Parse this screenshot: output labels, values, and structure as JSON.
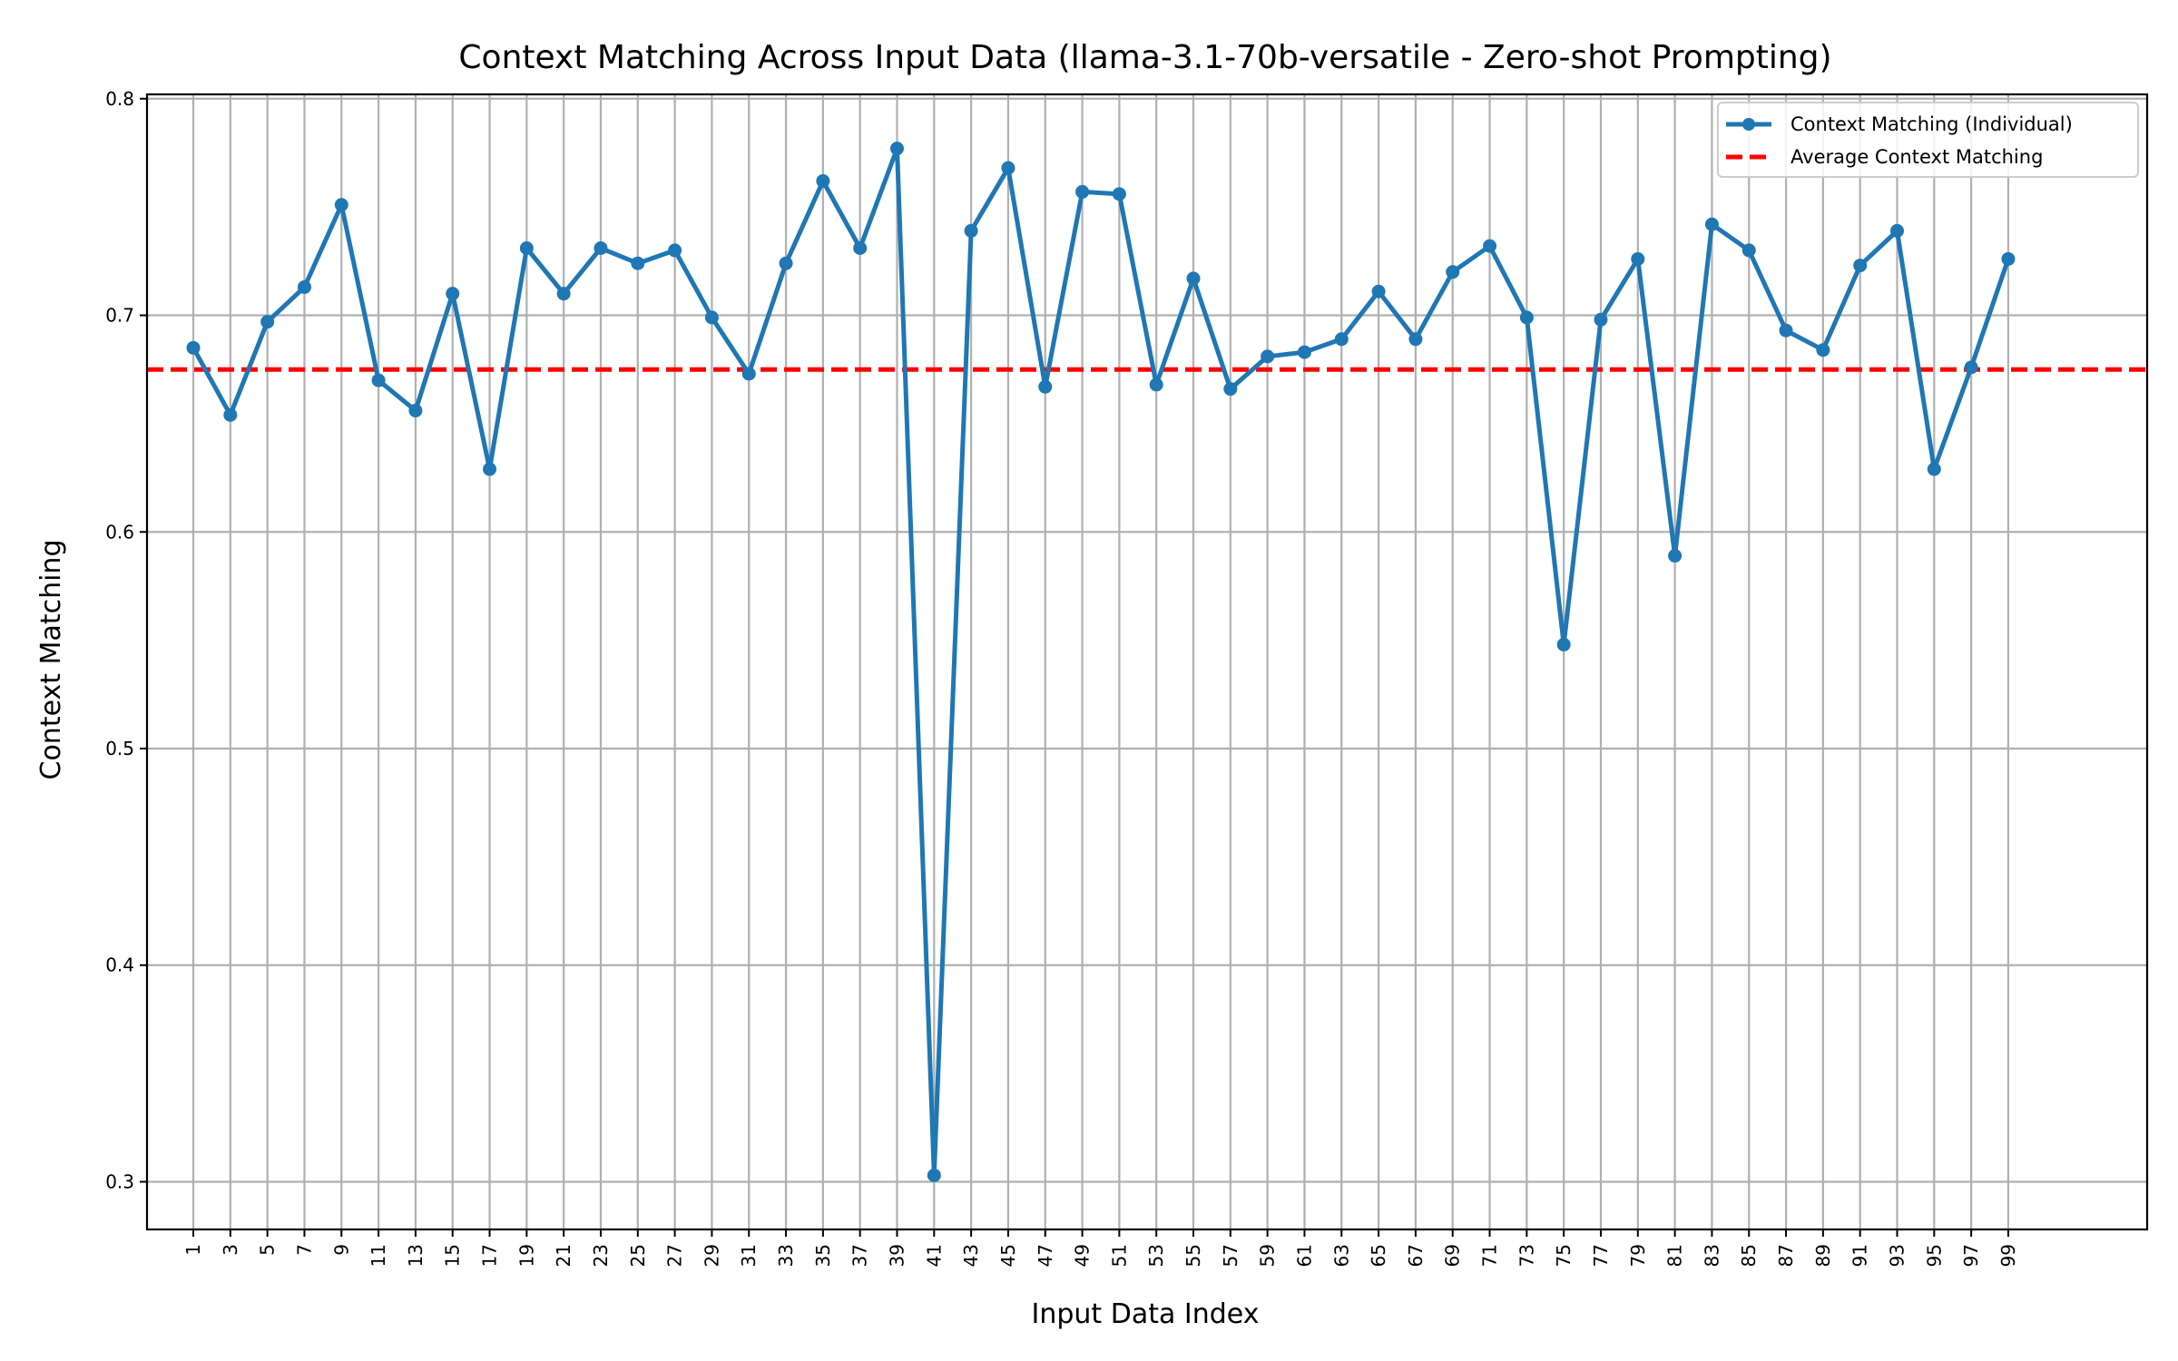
{
  "chart_data": {
    "type": "line",
    "title": "Context Matching Across Input Data (llama-3.1-70b-versatile - Zero-shot Prompting)",
    "xlabel": "Input Data Index",
    "ylabel": "Context Matching",
    "xlim": [
      -1.5,
      106.5
    ],
    "ylim": [
      0.278,
      0.802
    ],
    "grid": true,
    "legend_position": "upper right",
    "x_ticks": [
      1,
      3,
      5,
      7,
      9,
      11,
      13,
      15,
      17,
      19,
      21,
      23,
      25,
      27,
      29,
      31,
      33,
      35,
      37,
      39,
      41,
      43,
      45,
      47,
      49,
      51,
      53,
      55,
      57,
      59,
      61,
      63,
      65,
      67,
      69,
      71,
      73,
      75,
      77,
      79,
      81,
      83,
      85,
      87,
      89,
      91,
      93,
      95,
      97,
      99
    ],
    "x_tick_labels": [
      "1",
      "3",
      "5",
      "7",
      "9",
      "11",
      "13",
      "15",
      "17",
      "19",
      "21",
      "23",
      "25",
      "27",
      "29",
      "31",
      "33",
      "35",
      "37",
      "39",
      "41",
      "43",
      "45",
      "47",
      "49",
      "51",
      "53",
      "55",
      "57",
      "59",
      "61",
      "63",
      "65",
      "67",
      "69",
      "71",
      "73",
      "75",
      "77",
      "79",
      "81",
      "83",
      "85",
      "87",
      "89",
      "91",
      "93",
      "95",
      "97",
      "99"
    ],
    "y_ticks": [
      0.3,
      0.4,
      0.5,
      0.6,
      0.7,
      0.8
    ],
    "y_tick_labels": [
      "0.3",
      "0.4",
      "0.5",
      "0.6",
      "0.7",
      "0.8"
    ],
    "x": [
      1,
      3,
      5,
      7,
      9,
      11,
      13,
      15,
      17,
      19,
      21,
      23,
      25,
      27,
      29,
      31,
      33,
      35,
      37,
      39,
      41,
      43,
      45,
      47,
      49,
      51,
      53,
      55,
      57,
      59,
      61,
      63,
      65,
      67,
      69,
      71,
      73,
      75,
      77,
      79,
      81,
      83,
      85,
      87,
      89,
      91,
      93,
      95,
      97,
      99
    ],
    "series": [
      {
        "name": "Context Matching (Individual)",
        "color": "#1f77b4",
        "style": "solid",
        "marker": "circle",
        "values": [
          0.685,
          0.654,
          0.697,
          0.713,
          0.751,
          0.67,
          0.656,
          0.71,
          0.629,
          0.731,
          0.71,
          0.731,
          0.724,
          0.73,
          0.699,
          0.673,
          0.724,
          0.762,
          0.731,
          0.777,
          0.303,
          0.739,
          0.768,
          0.667,
          0.757,
          0.756,
          0.668,
          0.717,
          0.666,
          0.681,
          0.683,
          0.689,
          0.711,
          0.689,
          0.72,
          0.732,
          0.699,
          0.548,
          0.698,
          0.726,
          0.589,
          0.742,
          0.73,
          0.693,
          0.684,
          0.723,
          0.739,
          0.629,
          0.676,
          0.726
        ]
      },
      {
        "name": "Average Context Matching",
        "color": "#ff0000",
        "style": "dashed",
        "value": 0.675
      }
    ]
  }
}
